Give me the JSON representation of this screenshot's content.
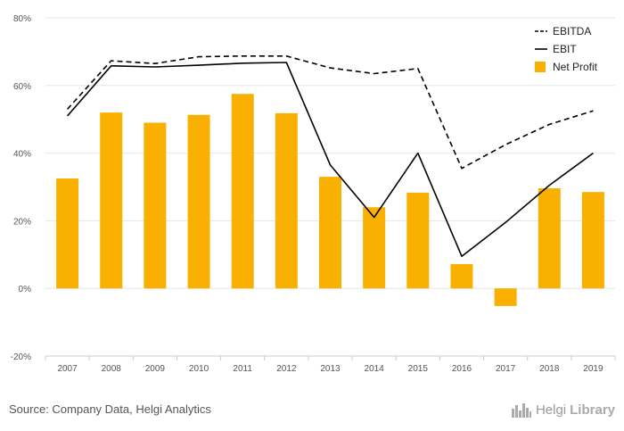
{
  "chart_data": {
    "type": "bar+line",
    "categories": [
      "2007",
      "2008",
      "2009",
      "2010",
      "2011",
      "2012",
      "2013",
      "2014",
      "2015",
      "2016",
      "2017",
      "2018",
      "2019"
    ],
    "series": [
      {
        "name": "EBITDA",
        "type": "line",
        "style": "dashed",
        "values": [
          53,
          67.3,
          66.5,
          68.5,
          68.7,
          68.7,
          65.2,
          63.5,
          65,
          35.5,
          42.5,
          48.5,
          52.5
        ]
      },
      {
        "name": "EBIT",
        "type": "line",
        "style": "solid",
        "values": [
          51,
          65.8,
          65.5,
          66,
          66.6,
          66.8,
          36.5,
          21,
          40,
          9.5,
          19.5,
          30.5,
          40
        ]
      },
      {
        "name": "Net Profit",
        "type": "bar",
        "values": [
          32.5,
          52,
          49,
          51.3,
          57.5,
          51.8,
          33,
          24,
          28.3,
          7.2,
          -5.2,
          29.6,
          28.5
        ]
      }
    ],
    "yTicks": [
      "80%",
      "60%",
      "40%",
      "20%",
      "0%",
      "-20%"
    ],
    "ylim": [
      -20,
      80
    ],
    "grid": true,
    "legend_position": "top-right"
  },
  "colors": {
    "bar": "#f9b000",
    "line": "#000000",
    "grid": "#e6e6e6",
    "axis": "#cccccc"
  },
  "footer": {
    "source": "Source: Company Data, Helgi Analytics",
    "brand_name": "Helgi",
    "brand_suffix": "Library",
    "brand_icon": "city-skyline-icon"
  }
}
